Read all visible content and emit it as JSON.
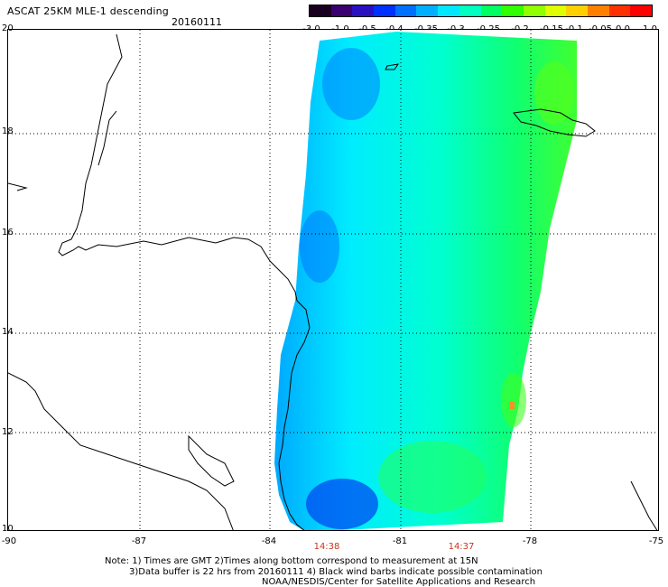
{
  "header": {
    "title": "ASCAT 25KM MLE-1 descending",
    "date": "20160111"
  },
  "colorbar": {
    "labels": [
      "-3.0",
      "-1.0",
      "-0.5",
      "-0.4",
      "-0.35",
      "-0.3",
      "-0.25",
      "-0.2",
      "-0.15",
      "-0.1",
      "-0.05",
      "0.0",
      "1.0"
    ],
    "colors": [
      "#1a0020",
      "#3a0070",
      "#2a10c0",
      "#0030ff",
      "#0070ff",
      "#00b0ff",
      "#00e8ff",
      "#00ffc0",
      "#00ff60",
      "#30ff00",
      "#90ff00",
      "#e0ff00",
      "#ffd000",
      "#ff8000",
      "#ff3000",
      "#ff0000"
    ]
  },
  "axes": {
    "lat_labels": [
      "20",
      "18",
      "16",
      "14",
      "12",
      "10"
    ],
    "lon_labels": [
      "-90",
      "-87",
      "-84",
      "-81",
      "-78",
      "-75"
    ]
  },
  "swath_times": [
    "14:38",
    "14:37"
  ],
  "notes": {
    "line1": "Note: 1) Times are GMT 2)Times along bottom correspond to measurement at 15N",
    "line2": "3)Data buffer is 22 hrs from 20160111 4) Black wind barbs indicate possible contamination",
    "line3": "NOAA/NESDIS/Center for Satellite Applications and Research"
  }
}
